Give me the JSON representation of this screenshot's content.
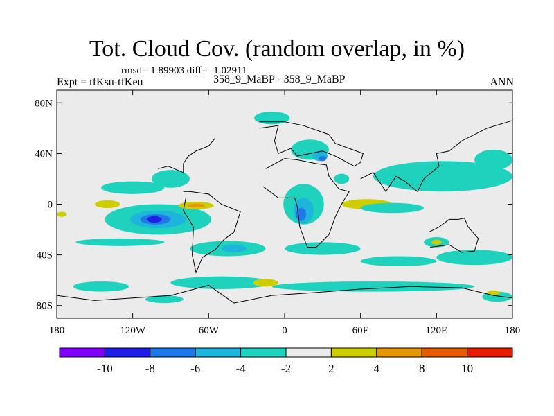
{
  "chart_data": {
    "type": "contour_map",
    "title": "Tot. Cloud Cov. (random overlap, in %)",
    "stats_line": "rmsd= 1.89903 diff= -1.02911",
    "rmsd": 1.89903,
    "diff": -1.02911,
    "expt_label": "Expt = tfKsu-tfKeu",
    "subtitle_center": "358_9_MaBP - 358_9_MaBP",
    "season": "ANN",
    "x_axis": {
      "range": [
        -180,
        180
      ],
      "ticks": [
        {
          "value": -180,
          "label": "180"
        },
        {
          "value": -120,
          "label": "120W"
        },
        {
          "value": -60,
          "label": "60W"
        },
        {
          "value": 0,
          "label": "0"
        },
        {
          "value": 60,
          "label": "60E"
        },
        {
          "value": 120,
          "label": "120E"
        },
        {
          "value": 180,
          "label": "180"
        }
      ]
    },
    "y_axis": {
      "range": [
        -90,
        90
      ],
      "ticks": [
        {
          "value": 80,
          "label": "80N"
        },
        {
          "value": 40,
          "label": "40N"
        },
        {
          "value": 0,
          "label": "0"
        },
        {
          "value": -40,
          "label": "40S"
        },
        {
          "value": -80,
          "label": "80S"
        }
      ]
    },
    "colorbar": {
      "levels": [
        {
          "label": "-10",
          "color": "#7f00ff"
        },
        {
          "label": "-8",
          "color": "#1e1ee6"
        },
        {
          "label": "-6",
          "color": "#1e78e6"
        },
        {
          "label": "-4",
          "color": "#1eb4dc"
        },
        {
          "label": "-2",
          "color": "#1ed2be"
        },
        {
          "label": "2",
          "color": "#ebebeb"
        },
        {
          "label": "4",
          "color": "#cdcd00"
        },
        {
          "label": "8",
          "color": "#e69600"
        },
        {
          "label": "10",
          "color": "#e65a00"
        },
        {
          "label": "",
          "color": "#e61e00"
        }
      ],
      "extra_color": "#e61e00"
    },
    "background_color": "#ebebeb",
    "anomaly_regions": [
      {
        "lon": -120,
        "lat": 13,
        "rlon": 25,
        "rlat": 5,
        "level": -2
      },
      {
        "lon": -90,
        "lat": 20,
        "rlon": 15,
        "rlat": 7,
        "level": -2
      },
      {
        "lon": -100,
        "lat": -12,
        "rlon": 42,
        "rlat": 12,
        "level": -2
      },
      {
        "lon": -100,
        "lat": -12,
        "rlon": 22,
        "rlat": 7,
        "level": -4
      },
      {
        "lon": -102,
        "lat": -12,
        "rlon": 12,
        "rlat": 4,
        "level": -6
      },
      {
        "lon": -103,
        "lat": -12,
        "rlon": 6,
        "rlat": 2.5,
        "level": -8
      },
      {
        "lon": -70,
        "lat": -1,
        "rlon": 14,
        "rlat": 3,
        "level": 2
      },
      {
        "lon": -70,
        "lat": -1,
        "rlon": 7,
        "rlat": 1.5,
        "level": 4
      },
      {
        "lon": -140,
        "lat": 0,
        "rlon": 10,
        "rlat": 3,
        "level": 2
      },
      {
        "lon": -176,
        "lat": -8,
        "rlon": 4,
        "rlat": 2,
        "level": 2
      },
      {
        "lon": -10,
        "lat": 68,
        "rlon": 14,
        "rlat": 5,
        "level": -2
      },
      {
        "lon": 20,
        "lat": 43,
        "rlon": 15,
        "rlat": 8,
        "level": -2
      },
      {
        "lon": 28,
        "lat": 38,
        "rlon": 6,
        "rlat": 4,
        "level": -4
      },
      {
        "lon": 30,
        "lat": 36,
        "rlon": 3,
        "rlat": 2,
        "level": -6
      },
      {
        "lon": 125,
        "lat": 22,
        "rlon": 55,
        "rlat": 12,
        "level": -2
      },
      {
        "lon": 110,
        "lat": 25,
        "rlon": 10,
        "rlat": 4,
        "level": -2
      },
      {
        "lon": 15,
        "lat": 0,
        "rlon": 16,
        "rlat": 16,
        "level": -2
      },
      {
        "lon": 15,
        "lat": -5,
        "rlon": 8,
        "rlat": 10,
        "level": -4
      },
      {
        "lon": 13,
        "lat": -8,
        "rlon": 4,
        "rlat": 5,
        "level": -6
      },
      {
        "lon": 45,
        "lat": 20,
        "rlon": 6,
        "rlat": 4,
        "level": -2
      },
      {
        "lon": 65,
        "lat": 0,
        "rlon": 20,
        "rlat": 4,
        "level": 2
      },
      {
        "lon": 85,
        "lat": -3,
        "rlon": 25,
        "rlat": 4,
        "level": -2
      },
      {
        "lon": 120,
        "lat": -30,
        "rlon": 10,
        "rlat": 4,
        "level": -2
      },
      {
        "lon": 120,
        "lat": -30,
        "rlon": 4,
        "rlat": 2,
        "level": 2
      },
      {
        "lon": 150,
        "lat": -42,
        "rlon": 30,
        "rlat": 6,
        "level": -2
      },
      {
        "lon": 90,
        "lat": -45,
        "rlon": 30,
        "rlat": 4,
        "level": -2
      },
      {
        "lon": 30,
        "lat": -35,
        "rlon": 30,
        "rlat": 5,
        "level": -2
      },
      {
        "lon": -45,
        "lat": -35,
        "rlon": 30,
        "rlat": 6,
        "level": -2
      },
      {
        "lon": -40,
        "lat": -35,
        "rlon": 10,
        "rlat": 3,
        "level": -4
      },
      {
        "lon": -130,
        "lat": -30,
        "rlon": 35,
        "rlat": 3,
        "level": -2
      },
      {
        "lon": -145,
        "lat": -65,
        "rlon": 22,
        "rlat": 4,
        "level": -2
      },
      {
        "lon": -50,
        "lat": -62,
        "rlon": 40,
        "rlat": 5,
        "level": -2
      },
      {
        "lon": 70,
        "lat": -65,
        "rlon": 80,
        "rlat": 4,
        "level": -2
      },
      {
        "lon": -95,
        "lat": -75,
        "rlon": 15,
        "rlat": 3,
        "level": -2
      },
      {
        "lon": 168,
        "lat": -73,
        "rlon": 12,
        "rlat": 4,
        "level": -2
      },
      {
        "lon": 165,
        "lat": -70,
        "rlon": 5,
        "rlat": 2,
        "level": 2
      },
      {
        "lon": -15,
        "lat": -62,
        "rlon": 10,
        "rlat": 3,
        "level": 2
      },
      {
        "lon": 165,
        "lat": 35,
        "rlon": 15,
        "rlat": 8,
        "level": -2
      }
    ]
  }
}
